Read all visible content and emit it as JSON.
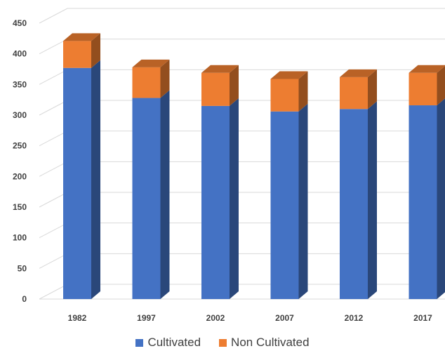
{
  "chart_data": {
    "type": "bar",
    "stacked": true,
    "three_d": true,
    "categories": [
      "1982",
      "1997",
      "2002",
      "2007",
      "2012",
      "2017"
    ],
    "series": [
      {
        "name": "Cultivated",
        "values": [
          377,
          328,
          315,
          306,
          310,
          316
        ],
        "color": "#4472C4"
      },
      {
        "name": "Non Cultivated",
        "values": [
          44,
          50,
          54,
          53,
          52,
          53
        ],
        "color": "#ED7D31"
      }
    ],
    "ylim": [
      0,
      450
    ],
    "yticks": [
      "0",
      "50",
      "100",
      "150",
      "200",
      "250",
      "300",
      "350",
      "400",
      "450"
    ],
    "grid": true,
    "legend_position": "bottom"
  }
}
